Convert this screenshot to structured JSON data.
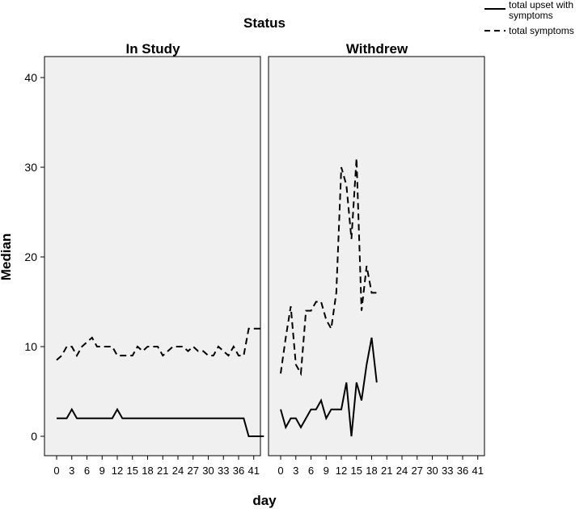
{
  "chart_data": {
    "type": "line",
    "title": "Status",
    "xlabel": "day",
    "ylabel": "Median",
    "ylim": [
      0,
      40
    ],
    "y_ticks": [
      "0",
      "10",
      "20",
      "30",
      "40"
    ],
    "x_tick_labels": [
      "0",
      "3",
      "6",
      "9",
      "12",
      "15",
      "18",
      "21",
      "24",
      "27",
      "30",
      "33",
      "36",
      "41"
    ],
    "grid": false,
    "legend_position": "top-right",
    "legend": [
      {
        "label_line1": "total upset with",
        "label_line2": "symptoms",
        "dash": "solid"
      },
      {
        "label_line1": "total symptoms",
        "label_line2": "",
        "dash": "dashed"
      }
    ],
    "panels": [
      {
        "title": "In Study",
        "series": [
          {
            "name": "total upset with symptoms",
            "x": [
              0,
              1,
              2,
              3,
              4,
              5,
              6,
              7,
              8,
              9,
              10,
              11,
              12,
              13,
              14,
              15,
              16,
              17,
              18,
              19,
              20,
              21,
              22,
              23,
              24,
              25,
              26,
              27,
              28,
              29,
              30,
              31,
              32,
              33,
              34,
              35,
              36,
              37,
              38,
              41
            ],
            "y": [
              2,
              2,
              2,
              3,
              2,
              2,
              2,
              2,
              2,
              2,
              2,
              2,
              3,
              2,
              2,
              2,
              2,
              2,
              2,
              2,
              2,
              2,
              2,
              2,
              2,
              2,
              2,
              2,
              2,
              2,
              2,
              2,
              2,
              2,
              2,
              2,
              2,
              2,
              0,
              0
            ]
          },
          {
            "name": "total symptoms",
            "x": [
              0,
              1,
              2,
              3,
              4,
              5,
              6,
              7,
              8,
              9,
              10,
              11,
              12,
              13,
              14,
              15,
              16,
              17,
              18,
              19,
              20,
              21,
              22,
              23,
              24,
              25,
              26,
              27,
              28,
              29,
              30,
              31,
              32,
              33,
              34,
              35,
              36,
              37,
              38,
              41
            ],
            "y": [
              8.5,
              9,
              10,
              10,
              9,
              10,
              10.5,
              11,
              10,
              10,
              10,
              10,
              9,
              9,
              9,
              9,
              10,
              9.5,
              10,
              10,
              10,
              9,
              9.5,
              10,
              10,
              10,
              9.5,
              10,
              9.5,
              9.5,
              9,
              9,
              10,
              9.5,
              9,
              10,
              9,
              9,
              12,
              12
            ]
          }
        ]
      },
      {
        "title": "Withdrew",
        "series": [
          {
            "name": "total upset with symptoms",
            "x": [
              0,
              1,
              2,
              3,
              4,
              5,
              6,
              7,
              8,
              9,
              10,
              11,
              12,
              13,
              14,
              15,
              16,
              17,
              18,
              19
            ],
            "y": [
              3,
              1,
              2,
              2,
              1,
              2,
              3,
              3,
              4,
              2,
              3,
              3,
              3,
              6,
              0,
              6,
              4,
              8,
              11,
              6
            ]
          },
          {
            "name": "total symptoms",
            "x": [
              0,
              1,
              2,
              3,
              4,
              5,
              6,
              7,
              8,
              9,
              10,
              11,
              12,
              13,
              14,
              15,
              16,
              17,
              18,
              19
            ],
            "y": [
              7,
              11,
              14.5,
              8,
              7,
              14,
              14,
              15,
              15,
              13,
              12,
              16,
              30,
              28,
              22,
              31,
              14,
              19,
              16,
              16
            ]
          }
        ]
      }
    ]
  }
}
